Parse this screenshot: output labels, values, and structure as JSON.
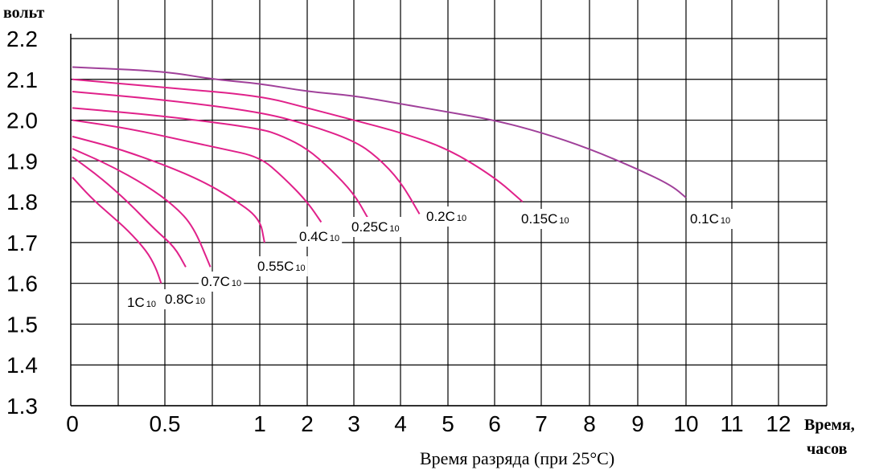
{
  "chart_data": {
    "type": "line",
    "title": "",
    "ylabel": "вольт",
    "xlabel": "Время разряда (при 25°C)",
    "x_unit_label": [
      "Время,",
      "часов"
    ],
    "ylim": [
      1.3,
      2.2
    ],
    "y_ticks": [
      "1.3",
      "1.4",
      "1.5",
      "1.6",
      "1.7",
      "1.8",
      "1.9",
      "2.0",
      "2.1",
      "2.2"
    ],
    "x_ticks": [
      "0",
      "0.5",
      "1",
      "2",
      "3",
      "4",
      "5",
      "6",
      "7",
      "8",
      "9",
      "10",
      "11",
      "12"
    ],
    "grid": true,
    "series": [
      {
        "name": "1C",
        "sub": "10",
        "x": [
          0,
          0.1,
          0.2,
          0.3,
          0.4,
          0.45,
          0.48
        ],
        "y": [
          1.86,
          1.81,
          1.77,
          1.73,
          1.68,
          1.64,
          1.6
        ]
      },
      {
        "name": "0.8C",
        "sub": "10",
        "x": [
          0,
          0.15,
          0.3,
          0.45,
          0.55,
          0.61
        ],
        "y": [
          1.91,
          1.86,
          1.8,
          1.73,
          1.69,
          1.64
        ]
      },
      {
        "name": "0.7C",
        "sub": "10",
        "x": [
          0,
          0.2,
          0.4,
          0.55,
          0.65,
          0.74
        ],
        "y": [
          1.93,
          1.89,
          1.84,
          1.79,
          1.74,
          1.64
        ]
      },
      {
        "name": "0.55C",
        "sub": "10",
        "x": [
          0,
          0.25,
          0.5,
          0.7,
          0.85,
          1.0,
          1.1
        ],
        "y": [
          1.96,
          1.93,
          1.89,
          1.85,
          1.81,
          1.76,
          1.7
        ]
      },
      {
        "name": "0.4C",
        "sub": "10",
        "x": [
          0,
          0.3,
          0.6,
          0.8,
          1.0,
          1.5,
          2.0,
          2.3
        ],
        "y": [
          2.0,
          1.98,
          1.95,
          1.93,
          1.91,
          1.86,
          1.8,
          1.75
        ]
      },
      {
        "name": "0.25C",
        "sub": "10",
        "x": [
          0,
          0.5,
          1.0,
          1.5,
          2.0,
          2.5,
          3.0,
          3.3
        ],
        "y": [
          2.03,
          2.01,
          1.98,
          1.96,
          1.93,
          1.88,
          1.82,
          1.76
        ]
      },
      {
        "name": "0.2C",
        "sub": "10",
        "x": [
          0,
          0.5,
          1.0,
          2.0,
          3.0,
          3.5,
          4.0,
          4.4
        ],
        "y": [
          2.07,
          2.05,
          2.02,
          1.99,
          1.95,
          1.91,
          1.85,
          1.77
        ]
      },
      {
        "name": "0.15C",
        "sub": "10",
        "x": [
          0,
          0.5,
          1.0,
          2.0,
          3.0,
          4.0,
          5.0,
          6.0,
          6.6
        ],
        "y": [
          2.1,
          2.08,
          2.06,
          2.03,
          2.0,
          1.97,
          1.93,
          1.86,
          1.8
        ]
      },
      {
        "name": "0.1C",
        "sub": "10",
        "x": [
          0,
          0.5,
          0.75,
          1.0,
          2.0,
          3.0,
          4.0,
          5.0,
          6.0,
          7.0,
          8.0,
          9.0,
          9.7,
          10.0
        ],
        "y": [
          2.13,
          2.12,
          2.1,
          2.09,
          2.07,
          2.06,
          2.04,
          2.02,
          2.0,
          1.97,
          1.93,
          1.88,
          1.84,
          1.81
        ]
      }
    ],
    "line_color": "#e0218a",
    "top_line_color": "#a0409a"
  }
}
